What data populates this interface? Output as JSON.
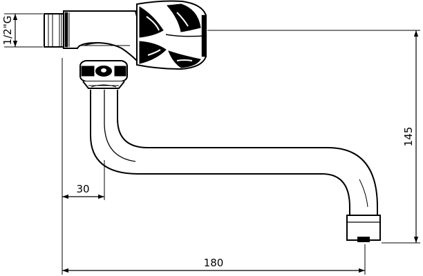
{
  "dimensions": {
    "thread": "1/2\"G",
    "outreach": "180",
    "offset": "30",
    "height": "145"
  }
}
